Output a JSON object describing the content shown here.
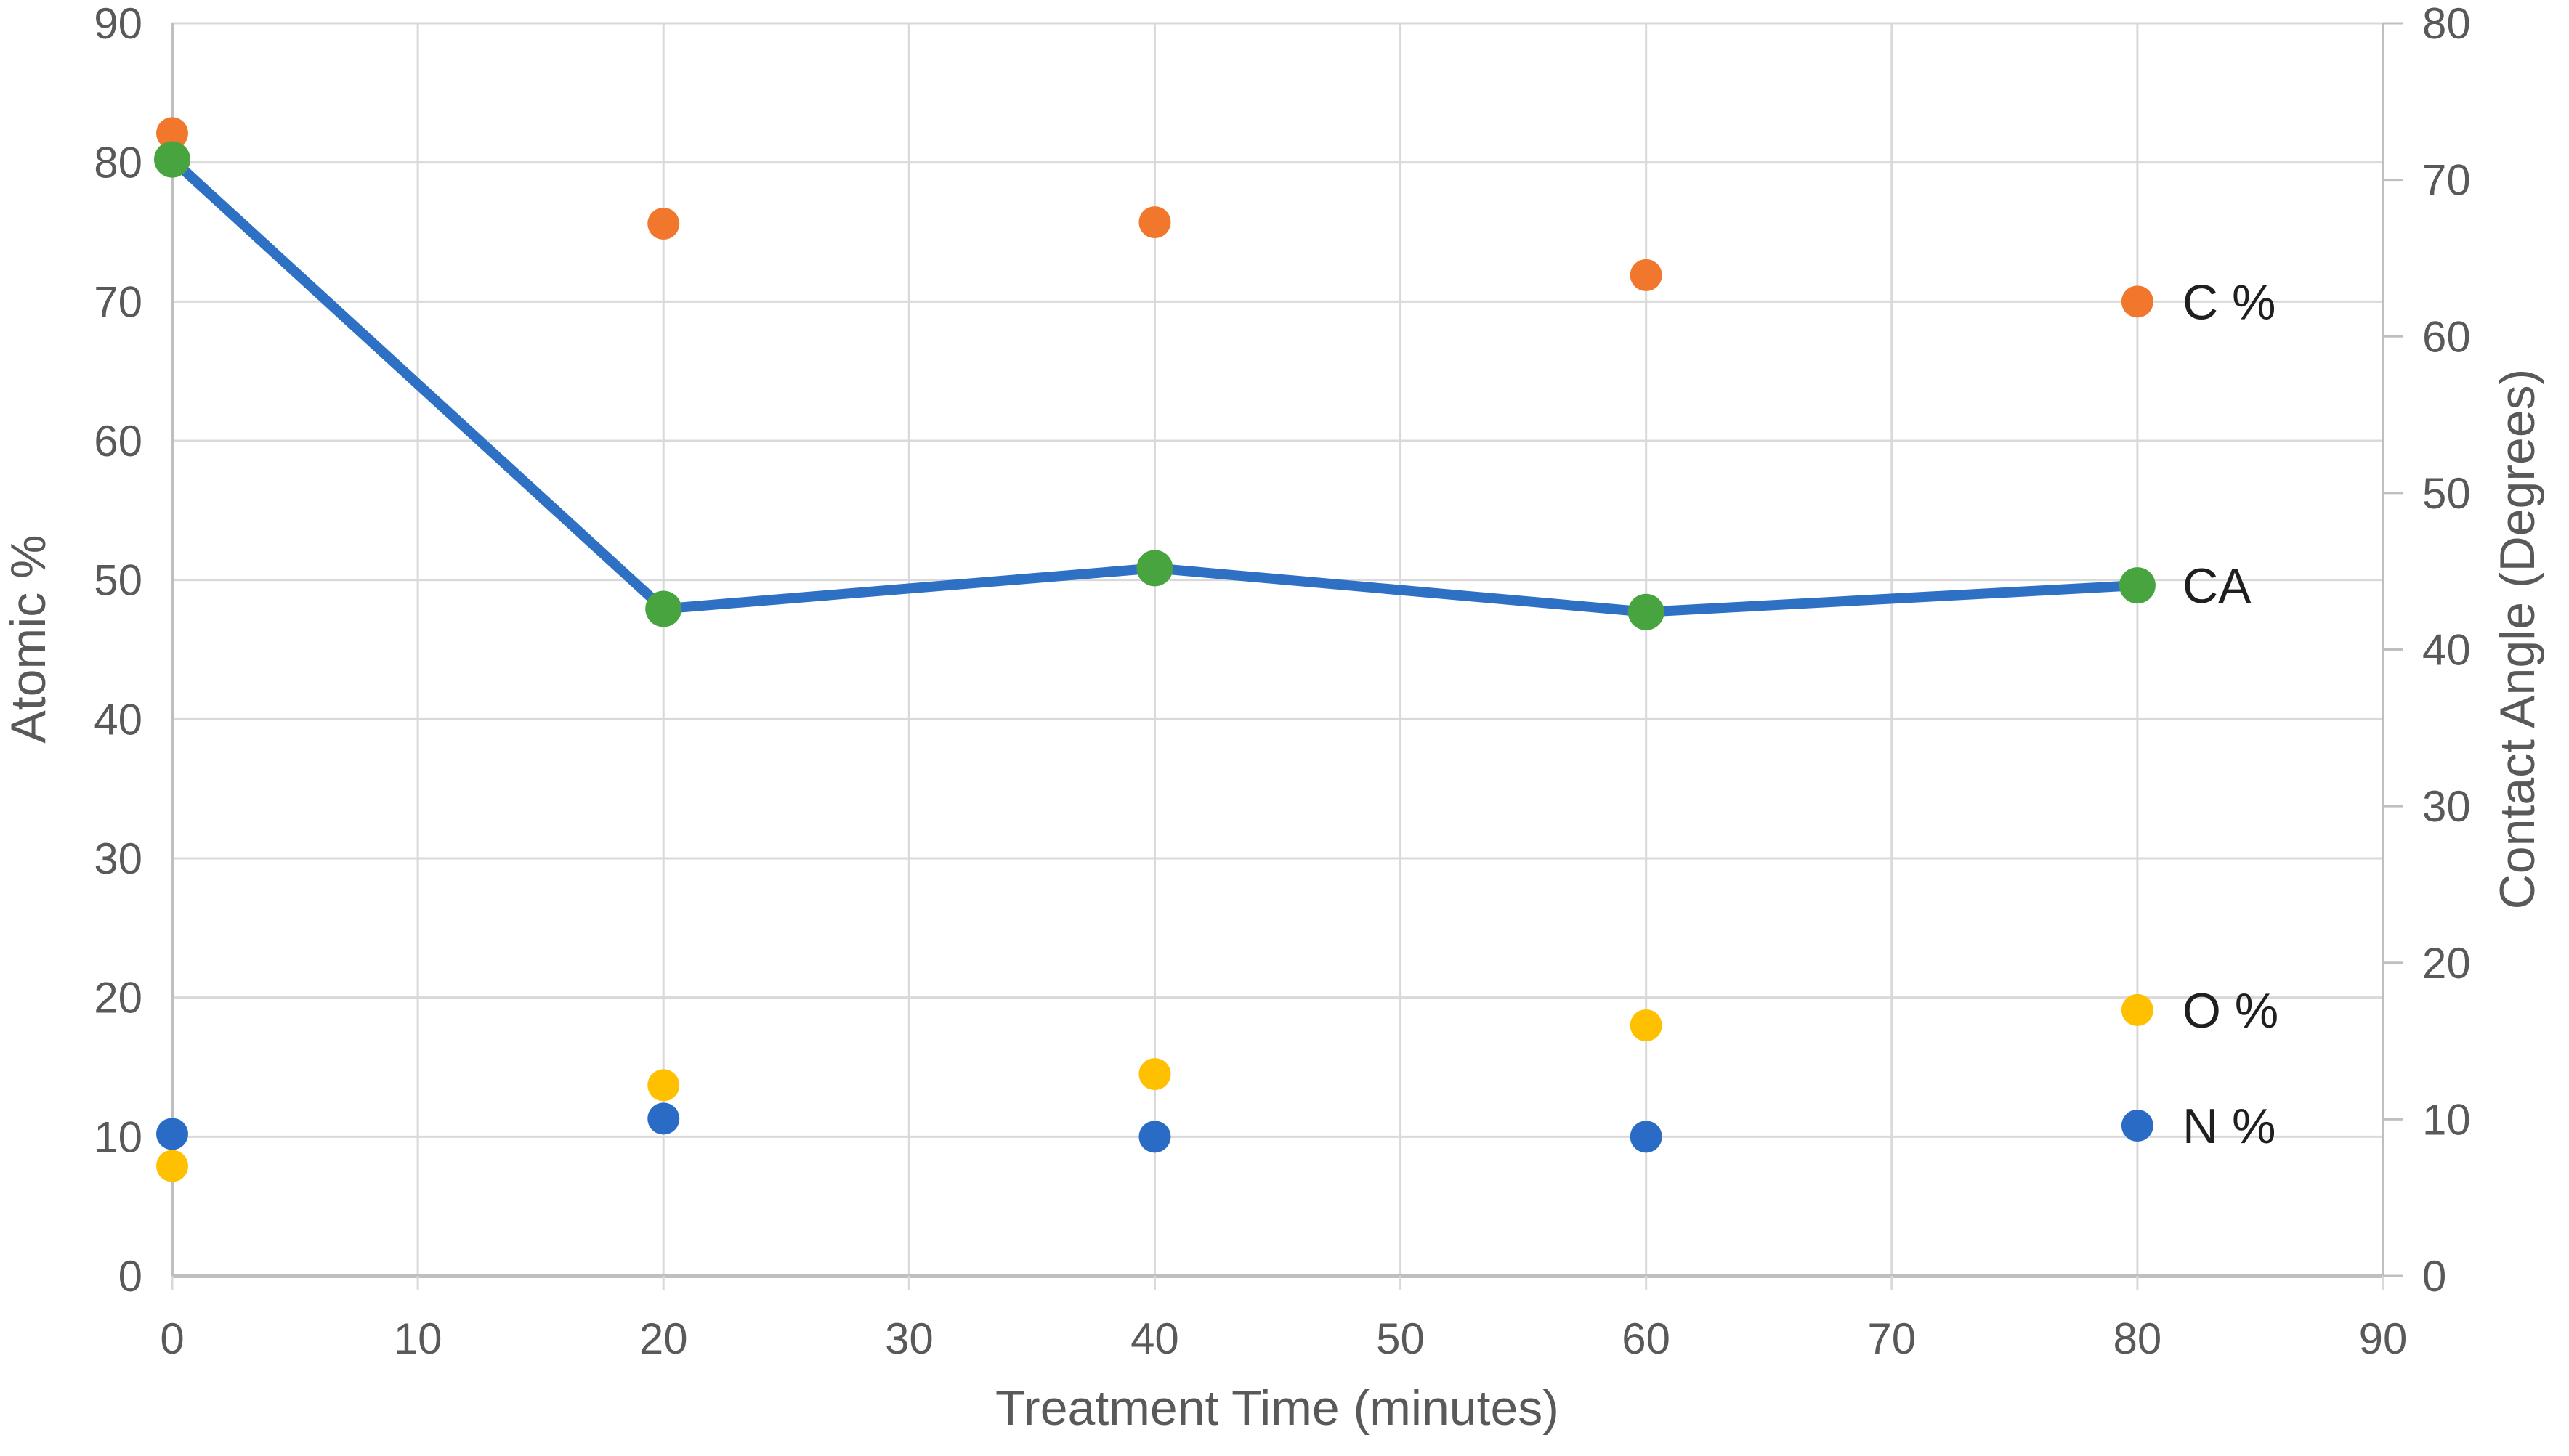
{
  "chart_data": {
    "type": "scatter",
    "title": "",
    "xlabel": "Treatment Time (minutes)",
    "ylabel_left": "Atomic %",
    "ylabel_right": "Contact Angle (Degrees)",
    "x_range": [
      0,
      90
    ],
    "y_left_range": [
      0,
      90
    ],
    "y_right_range": [
      0,
      80
    ],
    "x_ticks": [
      0,
      10,
      20,
      30,
      40,
      50,
      60,
      70,
      80,
      90
    ],
    "y_left_ticks": [
      0,
      10,
      20,
      30,
      40,
      50,
      60,
      70,
      80,
      90
    ],
    "y_right_ticks": [
      0,
      10,
      20,
      30,
      40,
      50,
      60,
      70,
      80
    ],
    "grid": true,
    "legend_position": "inline-right-data-labels",
    "x": [
      0,
      20,
      40,
      60,
      80
    ],
    "series": [
      {
        "name": "C %",
        "type": "scatter",
        "axis": "left",
        "color": "#F0772C",
        "values": [
          82.1,
          75.6,
          75.7,
          71.9,
          70.0
        ]
      },
      {
        "name": "CA",
        "type": "line-scatter",
        "axis": "right",
        "color": "#48A43E",
        "line_color": "#2E71C4",
        "values": [
          71.3,
          42.6,
          45.2,
          42.4,
          44.1
        ]
      },
      {
        "name": "O %",
        "type": "scatter",
        "axis": "left",
        "color": "#FFC000",
        "values": [
          7.9,
          13.7,
          14.5,
          18.0,
          19.1
        ]
      },
      {
        "name": "N %",
        "type": "scatter",
        "axis": "left",
        "color": "#2A6CC5",
        "values": [
          10.2,
          11.3,
          10.0,
          10.0,
          10.8
        ]
      }
    ],
    "colors": {
      "background": "#FFFFFF",
      "grid": "#D9D9D9",
      "axis": "#BFBFBF",
      "tick_text": "#595959",
      "title_text": "#595959",
      "label_text": "#1F1F1F"
    }
  }
}
